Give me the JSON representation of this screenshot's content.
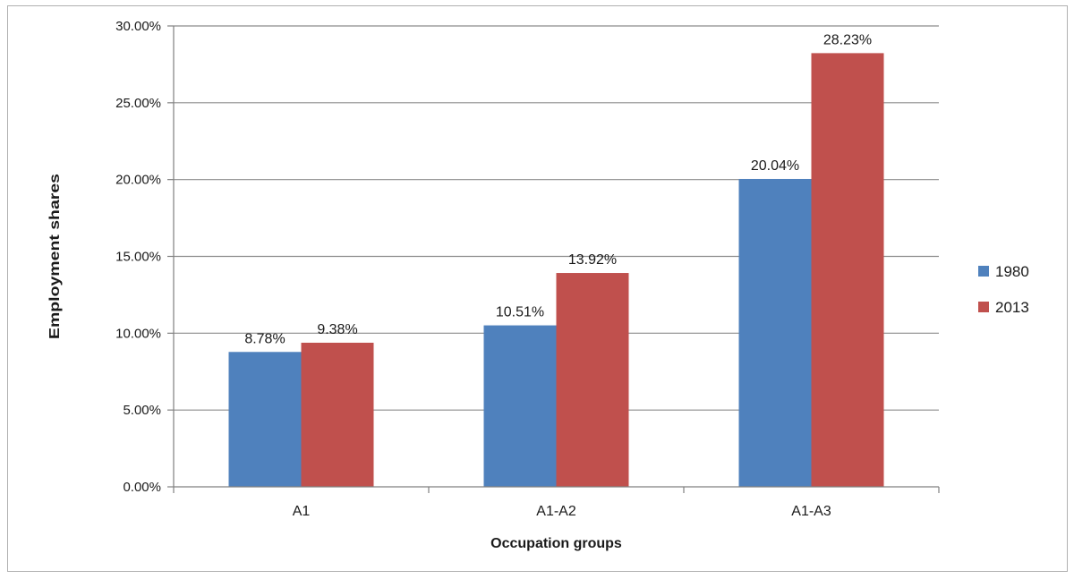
{
  "chart_data": {
    "type": "bar",
    "categories": [
      "A1",
      "A1-A2",
      "A1-A3"
    ],
    "series": [
      {
        "name": "1980",
        "values": [
          8.78,
          10.51,
          20.04
        ],
        "labels": [
          "8.78%",
          "10.51%",
          "20.04%"
        ],
        "color": "#4f81bd"
      },
      {
        "name": "2013",
        "values": [
          9.38,
          13.92,
          28.23
        ],
        "labels": [
          "9.38%",
          "13.92%",
          "28.23%"
        ],
        "color": "#c0504d"
      }
    ],
    "xlabel": "Occupation groups",
    "ylabel": "Employment shares",
    "ylim": [
      0,
      30
    ],
    "yticks": [
      0,
      5,
      10,
      15,
      20,
      25,
      30
    ],
    "ytick_labels": [
      "0.00%",
      "5.00%",
      "10.00%",
      "15.00%",
      "20.00%",
      "25.00%",
      "30.00%"
    ],
    "grid": true,
    "legend_position": "right"
  }
}
